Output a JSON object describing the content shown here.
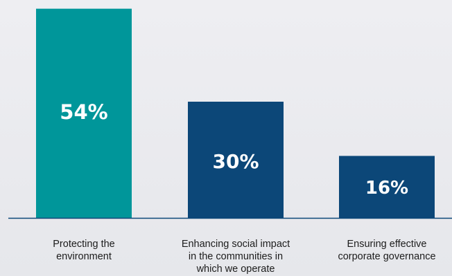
{
  "chart_data": {
    "type": "bar",
    "categories": [
      [
        "Protecting the",
        "environment"
      ],
      [
        "Enhancing social impact",
        "in the communities in",
        "which we operate"
      ],
      [
        "Ensuring effective",
        "corporate governance"
      ]
    ],
    "values": [
      54,
      30,
      16
    ],
    "value_labels": [
      "54%",
      "30%",
      "16%"
    ],
    "unit": "%",
    "colors": [
      "#00969a",
      "#0c4778",
      "#0c4778"
    ],
    "axis_color": "#0c4778",
    "grid": false,
    "legend": "none"
  }
}
